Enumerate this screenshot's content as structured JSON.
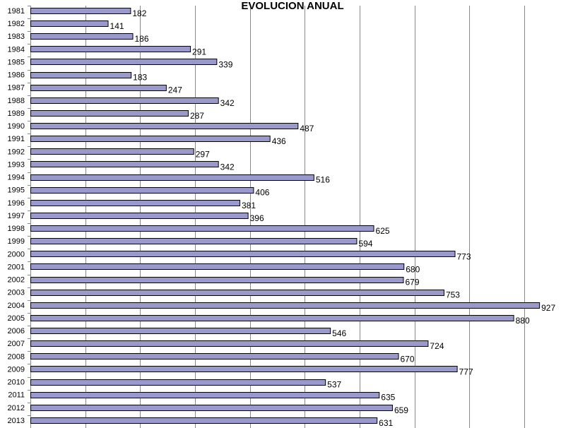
{
  "chart_data": {
    "type": "bar",
    "orientation": "horizontal",
    "title": "EVOLUCION ANUAL",
    "categories": [
      "1981",
      "1982",
      "1983",
      "1984",
      "1985",
      "1986",
      "1987",
      "1988",
      "1989",
      "1990",
      "1991",
      "1992",
      "1993",
      "1994",
      "1995",
      "1996",
      "1997",
      "1998",
      "1999",
      "2000",
      "2001",
      "2002",
      "2003",
      "2004",
      "2005",
      "2006",
      "2007",
      "2008",
      "2009",
      "2010",
      "2011",
      "2012",
      "2013"
    ],
    "values": [
      182,
      141,
      186,
      291,
      339,
      183,
      247,
      342,
      287,
      487,
      436,
      297,
      342,
      516,
      406,
      381,
      396,
      625,
      594,
      773,
      680,
      679,
      753,
      927,
      880,
      546,
      724,
      670,
      777,
      537,
      635,
      659,
      631
    ],
    "xlim": [
      0,
      950
    ],
    "grid_interval": 100,
    "vertical_gridlines": true,
    "data_labels": true,
    "legend": "none",
    "colors": {
      "bar_fill": "#9999cc",
      "bar_stroke": "#000000",
      "gridline": "#888888",
      "axis": "#888888"
    }
  }
}
